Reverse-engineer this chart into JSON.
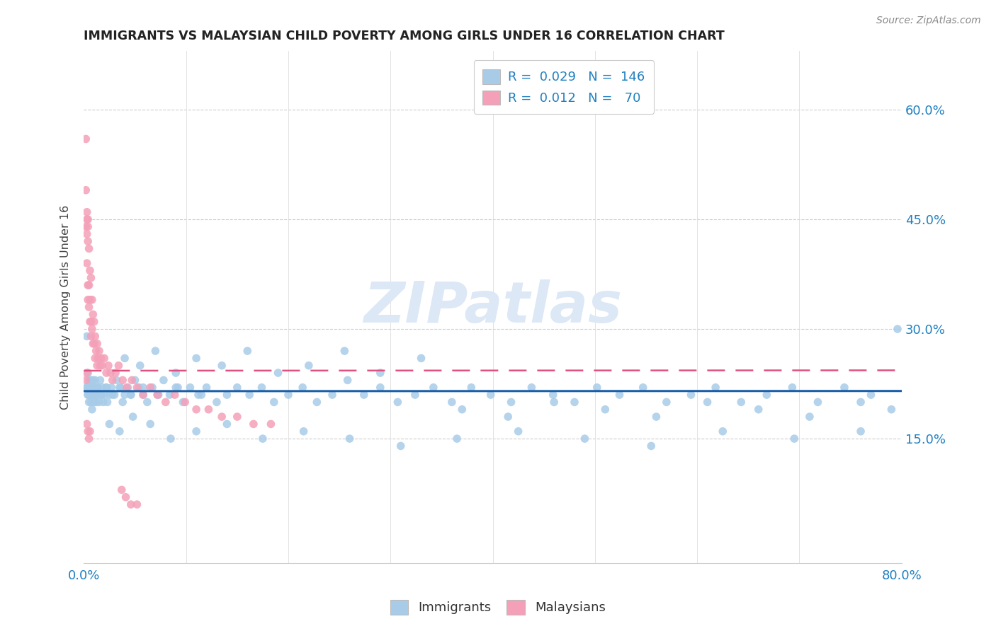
{
  "title": "IMMIGRANTS VS MALAYSIAN CHILD POVERTY AMONG GIRLS UNDER 16 CORRELATION CHART",
  "source": "Source: ZipAtlas.com",
  "ylabel": "Child Poverty Among Girls Under 16",
  "ytick_labels": [
    "15.0%",
    "30.0%",
    "45.0%",
    "60.0%"
  ],
  "ytick_values": [
    0.15,
    0.3,
    0.45,
    0.6
  ],
  "xlim": [
    0.0,
    0.8
  ],
  "ylim": [
    -0.02,
    0.68
  ],
  "immigrants_color": "#a8cce8",
  "malaysians_color": "#f4a0b8",
  "trend_immigrants_color": "#1a5fa8",
  "trend_malaysians_color": "#e05080",
  "background_color": "#ffffff",
  "watermark": "ZIPatlas",
  "watermark_color": "#dce8f5",
  "immigrants_x": [
    0.003,
    0.003,
    0.004,
    0.004,
    0.005,
    0.005,
    0.005,
    0.006,
    0.006,
    0.007,
    0.007,
    0.007,
    0.008,
    0.008,
    0.009,
    0.009,
    0.01,
    0.01,
    0.011,
    0.011,
    0.012,
    0.012,
    0.013,
    0.014,
    0.015,
    0.016,
    0.017,
    0.018,
    0.019,
    0.02,
    0.022,
    0.023,
    0.025,
    0.027,
    0.03,
    0.032,
    0.035,
    0.038,
    0.04,
    0.043,
    0.046,
    0.05,
    0.054,
    0.058,
    0.062,
    0.067,
    0.072,
    0.078,
    0.084,
    0.09,
    0.097,
    0.104,
    0.112,
    0.12,
    0.13,
    0.14,
    0.15,
    0.162,
    0.174,
    0.186,
    0.2,
    0.214,
    0.228,
    0.243,
    0.258,
    0.274,
    0.29,
    0.307,
    0.324,
    0.342,
    0.36,
    0.379,
    0.398,
    0.418,
    0.438,
    0.459,
    0.48,
    0.502,
    0.524,
    0.547,
    0.57,
    0.594,
    0.618,
    0.643,
    0.668,
    0.693,
    0.718,
    0.744,
    0.77,
    0.796,
    0.04,
    0.055,
    0.07,
    0.09,
    0.11,
    0.135,
    0.16,
    0.19,
    0.22,
    0.255,
    0.29,
    0.33,
    0.37,
    0.415,
    0.46,
    0.51,
    0.56,
    0.61,
    0.66,
    0.71,
    0.76,
    0.79,
    0.025,
    0.035,
    0.048,
    0.065,
    0.085,
    0.11,
    0.14,
    0.175,
    0.215,
    0.26,
    0.31,
    0.365,
    0.425,
    0.49,
    0.555,
    0.625,
    0.695,
    0.76,
    0.003,
    0.004,
    0.005,
    0.006,
    0.008,
    0.01,
    0.013,
    0.017,
    0.022,
    0.028,
    0.036,
    0.046,
    0.058,
    0.073,
    0.092,
    0.115
  ],
  "immigrants_y": [
    0.29,
    0.22,
    0.21,
    0.24,
    0.22,
    0.2,
    0.23,
    0.21,
    0.22,
    0.2,
    0.23,
    0.21,
    0.22,
    0.19,
    0.21,
    0.23,
    0.2,
    0.22,
    0.21,
    0.23,
    0.2,
    0.22,
    0.21,
    0.22,
    0.2,
    0.23,
    0.21,
    0.22,
    0.2,
    0.21,
    0.22,
    0.2,
    0.21,
    0.22,
    0.21,
    0.23,
    0.22,
    0.2,
    0.21,
    0.22,
    0.21,
    0.23,
    0.22,
    0.21,
    0.2,
    0.22,
    0.21,
    0.23,
    0.21,
    0.22,
    0.2,
    0.22,
    0.21,
    0.22,
    0.2,
    0.21,
    0.22,
    0.21,
    0.22,
    0.2,
    0.21,
    0.22,
    0.2,
    0.21,
    0.23,
    0.21,
    0.22,
    0.2,
    0.21,
    0.22,
    0.2,
    0.22,
    0.21,
    0.2,
    0.22,
    0.21,
    0.2,
    0.22,
    0.21,
    0.22,
    0.2,
    0.21,
    0.22,
    0.2,
    0.21,
    0.22,
    0.2,
    0.22,
    0.21,
    0.3,
    0.26,
    0.25,
    0.27,
    0.24,
    0.26,
    0.25,
    0.27,
    0.24,
    0.25,
    0.27,
    0.24,
    0.26,
    0.19,
    0.18,
    0.2,
    0.19,
    0.18,
    0.2,
    0.19,
    0.18,
    0.2,
    0.19,
    0.17,
    0.16,
    0.18,
    0.17,
    0.15,
    0.16,
    0.17,
    0.15,
    0.16,
    0.15,
    0.14,
    0.15,
    0.16,
    0.15,
    0.14,
    0.16,
    0.15,
    0.16,
    0.22,
    0.21,
    0.22,
    0.21,
    0.22,
    0.21,
    0.22,
    0.21,
    0.22,
    0.21,
    0.22,
    0.21,
    0.22,
    0.21,
    0.22,
    0.21
  ],
  "malaysians_x": [
    0.002,
    0.002,
    0.002,
    0.003,
    0.003,
    0.003,
    0.003,
    0.004,
    0.004,
    0.004,
    0.004,
    0.004,
    0.005,
    0.005,
    0.005,
    0.006,
    0.006,
    0.006,
    0.007,
    0.007,
    0.007,
    0.008,
    0.008,
    0.009,
    0.009,
    0.01,
    0.01,
    0.011,
    0.011,
    0.012,
    0.013,
    0.013,
    0.014,
    0.015,
    0.016,
    0.017,
    0.018,
    0.02,
    0.022,
    0.024,
    0.026,
    0.028,
    0.031,
    0.034,
    0.038,
    0.042,
    0.047,
    0.052,
    0.058,
    0.065,
    0.072,
    0.08,
    0.089,
    0.099,
    0.11,
    0.122,
    0.135,
    0.15,
    0.166,
    0.183,
    0.037,
    0.041,
    0.046,
    0.052,
    0.003,
    0.004,
    0.005,
    0.006,
    0.002,
    0.003
  ],
  "malaysians_y": [
    0.56,
    0.49,
    0.44,
    0.46,
    0.45,
    0.43,
    0.39,
    0.45,
    0.44,
    0.42,
    0.36,
    0.34,
    0.41,
    0.36,
    0.33,
    0.38,
    0.34,
    0.31,
    0.37,
    0.31,
    0.29,
    0.34,
    0.3,
    0.32,
    0.28,
    0.31,
    0.28,
    0.29,
    0.26,
    0.27,
    0.28,
    0.25,
    0.26,
    0.27,
    0.25,
    0.26,
    0.25,
    0.26,
    0.24,
    0.25,
    0.24,
    0.23,
    0.24,
    0.25,
    0.23,
    0.22,
    0.23,
    0.22,
    0.21,
    0.22,
    0.21,
    0.2,
    0.21,
    0.2,
    0.19,
    0.19,
    0.18,
    0.18,
    0.17,
    0.17,
    0.08,
    0.07,
    0.06,
    0.06,
    0.17,
    0.16,
    0.15,
    0.16,
    0.23,
    0.24
  ]
}
